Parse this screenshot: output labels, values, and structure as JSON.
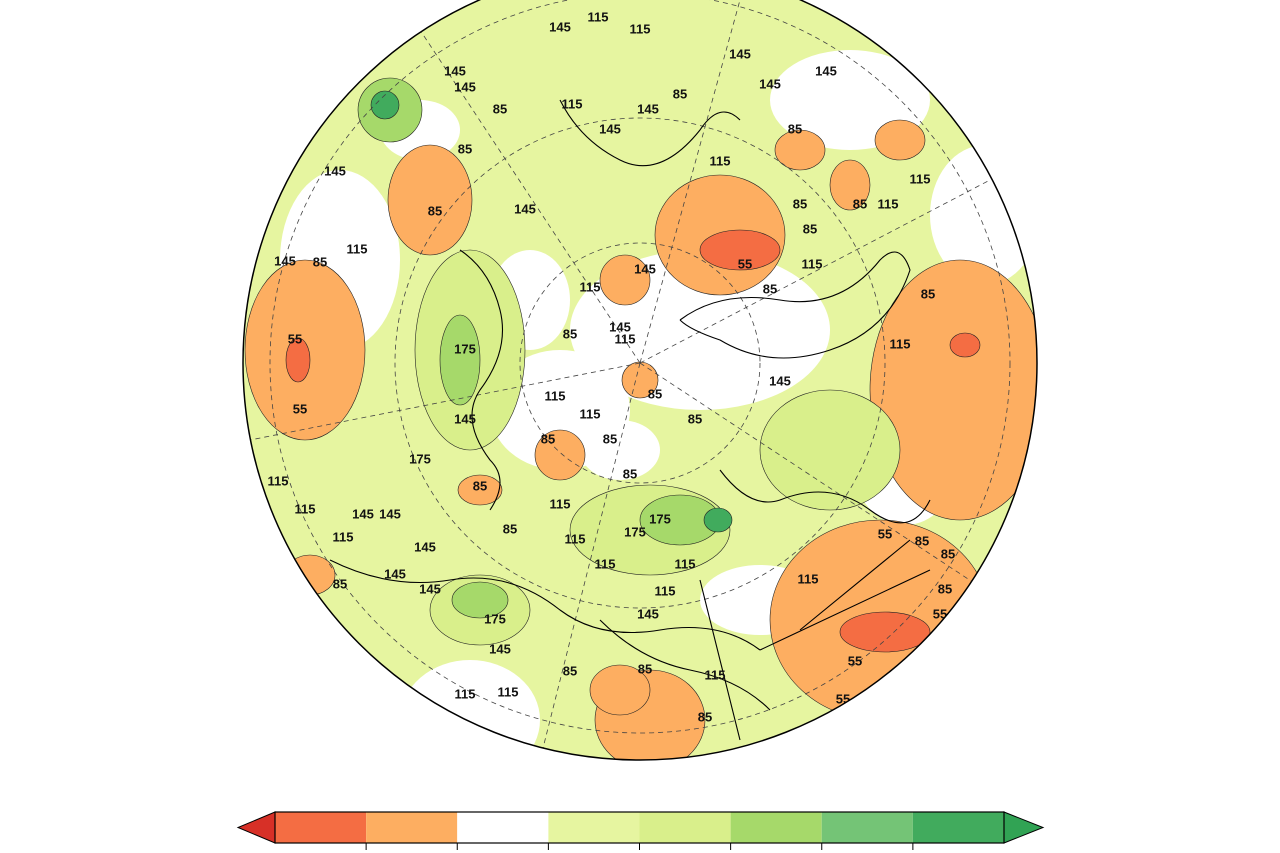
{
  "map": {
    "contour_labels": [
      145,
      115,
      115,
      145,
      145,
      145,
      145,
      145,
      85,
      115,
      145,
      145,
      85,
      85,
      85,
      145,
      115,
      115,
      85,
      85,
      85,
      115,
      145,
      85,
      85,
      115,
      145,
      55,
      115,
      85,
      85,
      115,
      145,
      145,
      85,
      115,
      55,
      175,
      115,
      145,
      115,
      85,
      115,
      85,
      85,
      55,
      145,
      175,
      85,
      85,
      115,
      115,
      145,
      145,
      85,
      115,
      175,
      175,
      85,
      115,
      145,
      115,
      55,
      85,
      85,
      145,
      115,
      115,
      115,
      85,
      145,
      115,
      175,
      145,
      145,
      85,
      85,
      55,
      115,
      115,
      115,
      85,
      55,
      55,
      85
    ],
    "colorbar": {
      "colors": [
        "#f46d43",
        "#fdae61",
        "#ffffff",
        "#e6f5a0",
        "#d9ef8b",
        "#a6d96a",
        "#74c476",
        "#41ab5d"
      ],
      "under_color": "#d73027",
      "over_color": "#31a354"
    }
  }
}
